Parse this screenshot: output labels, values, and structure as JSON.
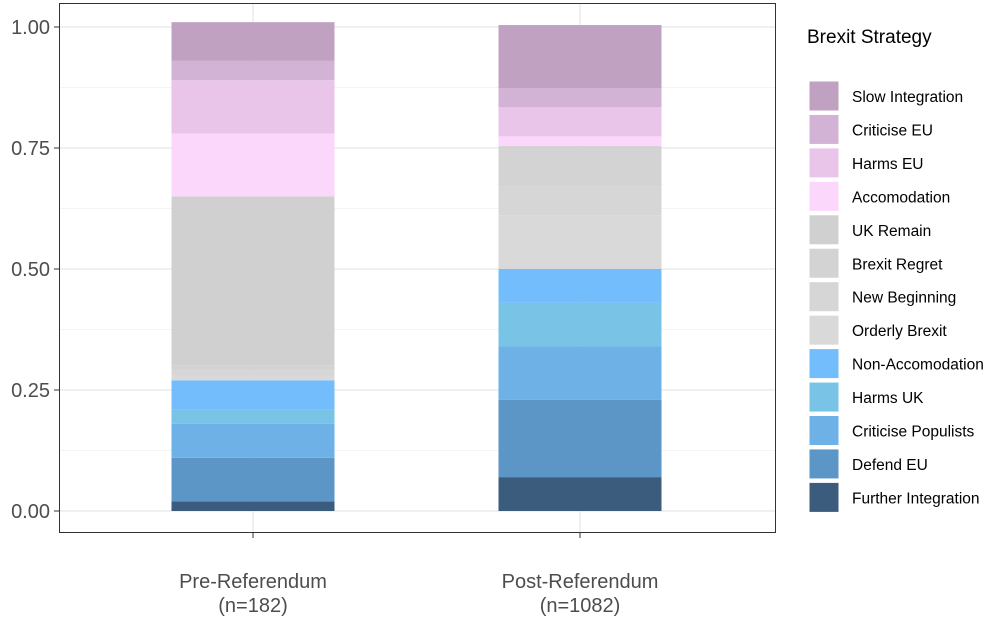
{
  "chart_data": {
    "type": "bar",
    "stacked": true,
    "normalized": true,
    "title": "",
    "xlabel": "",
    "ylabel": "",
    "ylim": [
      0,
      1
    ],
    "y_ticks": [
      "0.00",
      "0.25",
      "0.50",
      "0.75",
      "1.00"
    ],
    "grid": true,
    "legend_position": "right",
    "legend_title": "Brexit Strategy",
    "categories": [
      {
        "label": "Pre-Referendum",
        "sublabel": "(n=182)"
      },
      {
        "label": "Post-Referendum",
        "sublabel": "(n=1082)"
      }
    ],
    "series": [
      {
        "name": "Further Integration",
        "color": "#3b5c7d",
        "values": [
          0.02,
          0.07
        ]
      },
      {
        "name": "Defend EU",
        "color": "#5b96c6",
        "values": [
          0.09,
          0.16
        ]
      },
      {
        "name": "Criticise Populists",
        "color": "#6eb1e7",
        "values": [
          0.07,
          0.11
        ]
      },
      {
        "name": "Harms UK",
        "color": "#79c3e6",
        "values": [
          0.03,
          0.09
        ]
      },
      {
        "name": "Non-Accomodation",
        "color": "#74bdfc",
        "values": [
          0.06,
          0.07
        ]
      },
      {
        "name": "Orderly Brexit",
        "color": "#d9d9d9",
        "values": [
          0.01,
          0.11
        ]
      },
      {
        "name": "New Beginning",
        "color": "#d6d6d6",
        "values": [
          0.01,
          0.06
        ]
      },
      {
        "name": "Brexit Regret",
        "color": "#d3d3d3",
        "values": [
          0.01,
          0.08
        ]
      },
      {
        "name": "UK Remain",
        "color": "#d0d0d0",
        "values": [
          0.35,
          0.004
        ]
      },
      {
        "name": "Accomodation",
        "color": "#fbd7fc",
        "values": [
          0.13,
          0.02
        ]
      },
      {
        "name": "Harms EU",
        "color": "#e9c6e9",
        "values": [
          0.11,
          0.06
        ]
      },
      {
        "name": "Criticise EU",
        "color": "#d2b2d5",
        "values": [
          0.04,
          0.04
        ]
      },
      {
        "name": "Slow Integration",
        "color": "#c1a1c1",
        "values": [
          0.08,
          0.13
        ]
      }
    ]
  }
}
